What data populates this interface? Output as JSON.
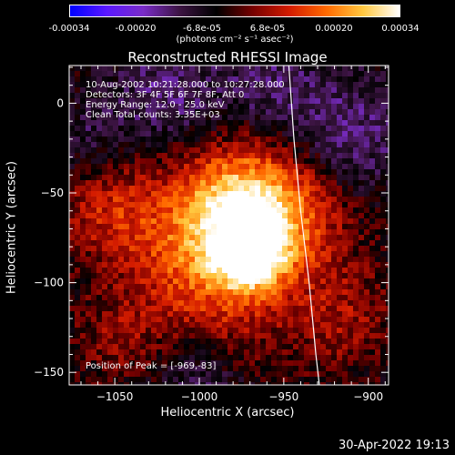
{
  "colorbar": {
    "ticks": [
      "-0.00034",
      "-0.00020",
      "-6.8e-05",
      "6.8e-05",
      "0.00020",
      "0.00034"
    ],
    "units": "(photons cm⁻² s⁻¹ asec⁻²)",
    "stops": [
      "#0000ff",
      "#5a18ff",
      "#7a2cc8",
      "#3c1442",
      "#000000",
      "#780000",
      "#d41c00",
      "#ff6a00",
      "#ffc840",
      "#ffffff"
    ]
  },
  "info": {
    "line1": "10-Aug-2002 10:21:28.000 to 10:27:28.000",
    "line2": "Detectors: 3F 4F 5F 6F 7F 8F, Att 0",
    "line3": "Energy Range: 12.0 - 25.0 keV",
    "line4": "Clean    Total counts: 3.35E+03",
    "peak": "Position of Peak = [-969,-83]"
  },
  "timestamp": "30-Apr-2022 19:13",
  "chart_data": {
    "type": "heatmap",
    "title": "Reconstructed RHESSI Image",
    "xlabel": "Heliocentric X (arcsec)",
    "ylabel": "Heliocentric Y (arcsec)",
    "xlim": [
      -1077,
      -888
    ],
    "ylim": [
      -157,
      21
    ],
    "xticks": [
      -1050,
      -1000,
      -950,
      -900
    ],
    "yticks": [
      0,
      -50,
      -100,
      -150
    ],
    "xtick_labels": [
      "−1050",
      "−1000",
      "−950",
      "−900"
    ],
    "ytick_labels": [
      "0",
      "−50",
      "−100",
      "−150"
    ],
    "value_range": [
      -0.00034,
      0.00034
    ],
    "peak": [
      -969,
      -83
    ],
    "limb_curve": [
      [
        -947,
        21
      ],
      [
        -944,
        -20
      ],
      [
        -940,
        -60
      ],
      [
        -935,
        -100
      ],
      [
        -931,
        -140
      ],
      [
        -929,
        -157
      ]
    ],
    "sources": [
      {
        "x": -969,
        "y": -83,
        "sigma": 14,
        "amp": 0.00034
      },
      {
        "x": -975,
        "y": -55,
        "sigma": 22,
        "amp": 0.00022
      },
      {
        "x": -945,
        "y": -60,
        "sigma": 26,
        "amp": 0.00018
      },
      {
        "x": -1005,
        "y": -72,
        "sigma": 28,
        "amp": 0.00016
      },
      {
        "x": -1055,
        "y": -60,
        "sigma": 20,
        "amp": 0.00012
      },
      {
        "x": -990,
        "y": -110,
        "sigma": 30,
        "amp": 0.00012
      },
      {
        "x": -915,
        "y": -120,
        "sigma": 22,
        "amp": 0.0001
      },
      {
        "x": -1050,
        "y": -130,
        "sigma": 18,
        "amp": 8e-05
      },
      {
        "x": -915,
        "y": -20,
        "sigma": 25,
        "amp": -0.00012
      },
      {
        "x": -1020,
        "y": 5,
        "sigma": 22,
        "amp": -0.0001
      },
      {
        "x": -960,
        "y": 10,
        "sigma": 20,
        "amp": -8e-05
      },
      {
        "x": -1000,
        "y": -150,
        "sigma": 18,
        "amp": -0.0001
      },
      {
        "x": -1065,
        "y": -20,
        "sigma": 15,
        "amp": -6e-05
      }
    ]
  }
}
